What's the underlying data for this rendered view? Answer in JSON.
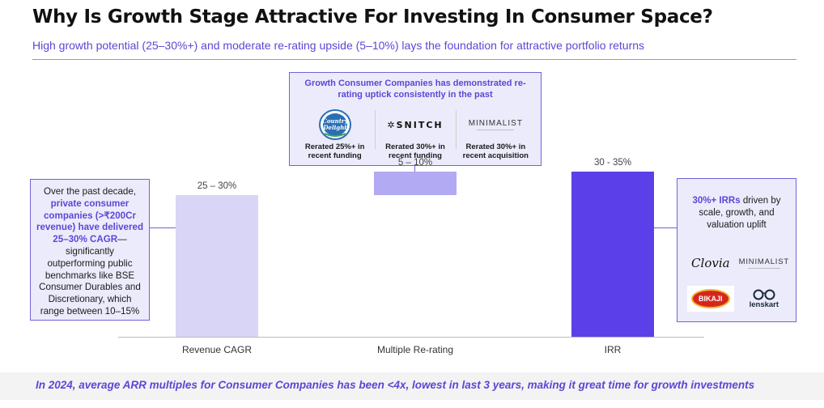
{
  "title": "Why Is Growth Stage Attractive For Investing In Consumer Space?",
  "subtitle": "High growth potential (25–30%+) and moderate re-rating upside (5–10%) lays the foundation for attractive portfolio returns",
  "chart_data": {
    "type": "bar",
    "subtype": "waterfall",
    "categories": [
      "Revenue CAGR",
      "Multiple Re-rating",
      "IRR"
    ],
    "ranges": [
      [
        25,
        30
      ],
      [
        5,
        10
      ],
      [
        30,
        35
      ]
    ],
    "data_labels": [
      "25 – 30%",
      "5 – 10%",
      "30 - 35%"
    ],
    "colors": [
      "#d9d5f7",
      "#b2aaf2",
      "#5b3fe8"
    ],
    "ylim": [
      0,
      37
    ]
  },
  "left_box": {
    "intro": "Over the past decade,",
    "highlight": "private consumer companies (>₹200Cr revenue) have delivered 25–30% CAGR",
    "rest": "— significantly outperforming public benchmarks like BSE Consumer Durables and Discretionary, which range between 10–15%"
  },
  "top_box": {
    "head": "Growth Consumer Companies  has demonstrated re-rating uptick consistently in the past",
    "logos": [
      {
        "name": "Country Delight",
        "line1": "Country",
        "line2": "Delight",
        "caption": "Rerated 25%+ in recent funding"
      },
      {
        "name": "SNITCH",
        "text": "SNITCH",
        "caption": "Rerated 30%+ in recent funding"
      },
      {
        "name": "MINIMALIST",
        "text": "MINIMALIST",
        "caption": "Rerated 30%+ in recent acquisition"
      }
    ]
  },
  "right_box": {
    "highlight": "30%+ IRRs",
    "rest": " driven by scale, growth, and valuation uplift",
    "logos": {
      "clovia": "Clovia",
      "minimalist": "MINIMALIST",
      "bikaji": "BIKAJI",
      "lenskart": "lenskart"
    }
  },
  "footer": "In 2024, average ARR multiples for Consumer Companies has been <4x, lowest in last 3 years, making it great time for growth investments"
}
